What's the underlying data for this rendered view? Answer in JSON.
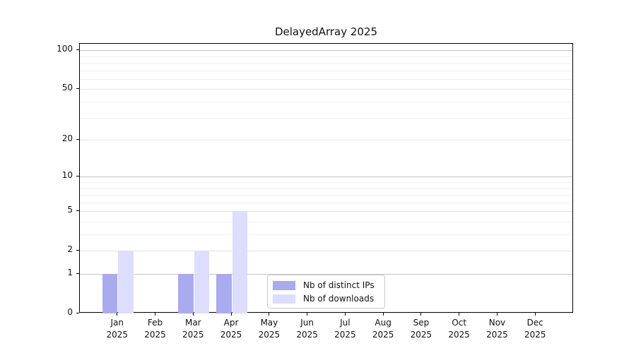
{
  "chart_data": {
    "type": "bar",
    "title": "DelayedArray 2025",
    "categories": [
      "Jan",
      "Feb",
      "Mar",
      "Apr",
      "May",
      "Jun",
      "Jul",
      "Aug",
      "Sep",
      "Oct",
      "Nov",
      "Dec"
    ],
    "year_label": "2025",
    "series": [
      {
        "name": "Nb of distinct IPs",
        "color": "#aaaaee",
        "values": [
          1,
          0,
          1,
          1,
          0,
          0,
          0,
          0,
          0,
          0,
          0,
          0
        ]
      },
      {
        "name": "Nb of downloads",
        "color": "#ddddff",
        "values": [
          2,
          0,
          2,
          5,
          0,
          0,
          0,
          0,
          0,
          0,
          0,
          0
        ]
      }
    ],
    "y_axis": {
      "scale": "log10(1+x)",
      "major_ticks": [
        0,
        1,
        2,
        5,
        10,
        20,
        50,
        100
      ],
      "decade_gridlines": [
        1,
        10,
        100
      ],
      "submajor_gridlines": [
        2,
        5,
        20,
        50
      ],
      "minor_gridlines": [
        3,
        4,
        6,
        7,
        8,
        9,
        30,
        40,
        60,
        70,
        80,
        90
      ],
      "ylim": [
        0,
        113
      ]
    },
    "legend": {
      "position": "lower center",
      "entries": [
        "Nb of distinct IPs",
        "Nb of downloads"
      ]
    },
    "grid": "horizontal",
    "colors": {
      "axis": "#000000",
      "text": "#111111",
      "decade_grid": "#c4c4c4",
      "submajor_grid": "#e2e2e2",
      "minor_grid": "#f0f0f0"
    }
  }
}
